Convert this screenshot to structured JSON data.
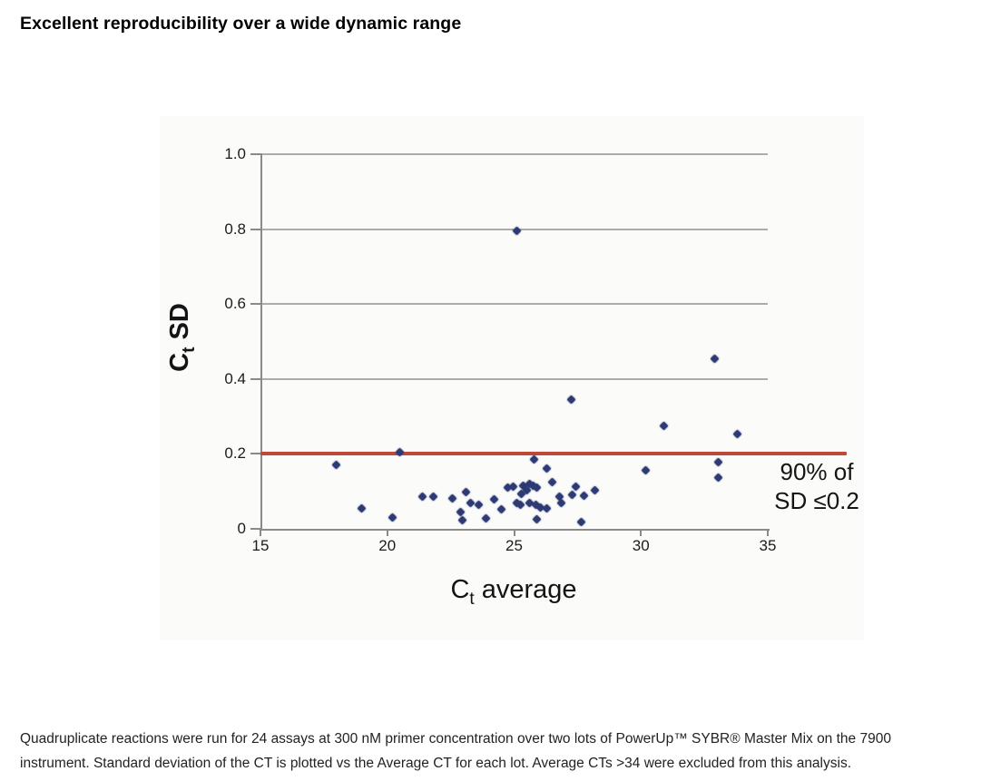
{
  "title": "Excellent reproducibility over a wide dynamic range",
  "caption_lines": [
    "Quadruplicate reactions were run for 24 assays at 300 nM primer concentration over two lots of PowerUp™ SYBR® Master Mix on the 7900",
    "instrument. Standard deviation of the CT is plotted vs the Average CT for each lot. Average CTs >34 were excluded from this analysis."
  ],
  "colors": {
    "threshold_red": "#c0473a",
    "point_navy": "#2e3a74",
    "grid_gray": "#9e9e9e",
    "axis_gray": "#8a8a8a",
    "figure_background": "#fbfcfa"
  },
  "chart_data": {
    "type": "scatter",
    "xlabel": "Ct average",
    "ylabel": "Ct SD",
    "xlabel_parts": {
      "pre": "C",
      "sub": "t",
      "post": " average"
    },
    "ylabel_parts": {
      "pre": "C",
      "sub": "t",
      "post": " SD"
    },
    "xlim": [
      15,
      35
    ],
    "ylim": [
      0,
      1.0
    ],
    "x_ticks": [
      {
        "v": 15,
        "label": "15"
      },
      {
        "v": 20,
        "label": "20"
      },
      {
        "v": 25,
        "label": "25"
      },
      {
        "v": 30,
        "label": "30"
      },
      {
        "v": 35,
        "label": "35"
      }
    ],
    "y_ticks": [
      {
        "v": 0,
        "label": "0"
      },
      {
        "v": 0.2,
        "label": "0.2"
      },
      {
        "v": 0.4,
        "label": "0.4"
      },
      {
        "v": 0.6,
        "label": "0.6"
      },
      {
        "v": 0.8,
        "label": "0.8"
      },
      {
        "v": 1.0,
        "label": "1.0"
      }
    ],
    "grid": "horizontal",
    "legend": "none",
    "threshold_line": {
      "y": 0.2
    },
    "annotation": {
      "lines": [
        "90% of",
        "SD ≤0.2"
      ]
    },
    "points": [
      [
        18.0,
        0.17
      ],
      [
        19.0,
        0.055
      ],
      [
        20.2,
        0.03
      ],
      [
        20.5,
        0.205
      ],
      [
        21.4,
        0.085
      ],
      [
        21.8,
        0.085
      ],
      [
        22.55,
        0.08
      ],
      [
        22.9,
        0.046
      ],
      [
        22.95,
        0.024
      ],
      [
        23.1,
        0.097
      ],
      [
        23.3,
        0.07
      ],
      [
        23.6,
        0.065
      ],
      [
        23.9,
        0.029
      ],
      [
        24.2,
        0.078
      ],
      [
        24.5,
        0.051
      ],
      [
        24.75,
        0.11
      ],
      [
        24.95,
        0.113
      ],
      [
        25.1,
        0.07
      ],
      [
        25.1,
        0.795
      ],
      [
        25.25,
        0.065
      ],
      [
        25.3,
        0.093
      ],
      [
        25.35,
        0.115
      ],
      [
        25.5,
        0.103
      ],
      [
        25.6,
        0.119
      ],
      [
        25.6,
        0.069
      ],
      [
        25.75,
        0.114
      ],
      [
        25.8,
        0.185
      ],
      [
        25.85,
        0.063
      ],
      [
        25.9,
        0.111
      ],
      [
        25.9,
        0.025
      ],
      [
        26.05,
        0.058
      ],
      [
        26.3,
        0.16
      ],
      [
        26.3,
        0.055
      ],
      [
        26.5,
        0.125
      ],
      [
        26.8,
        0.085
      ],
      [
        26.85,
        0.07
      ],
      [
        27.25,
        0.344
      ],
      [
        27.3,
        0.09
      ],
      [
        27.45,
        0.112
      ],
      [
        27.65,
        0.018
      ],
      [
        27.75,
        0.088
      ],
      [
        28.2,
        0.104
      ],
      [
        30.2,
        0.157
      ],
      [
        30.9,
        0.276
      ],
      [
        32.9,
        0.455
      ],
      [
        33.05,
        0.177
      ],
      [
        33.05,
        0.138
      ],
      [
        33.8,
        0.254
      ]
    ]
  }
}
